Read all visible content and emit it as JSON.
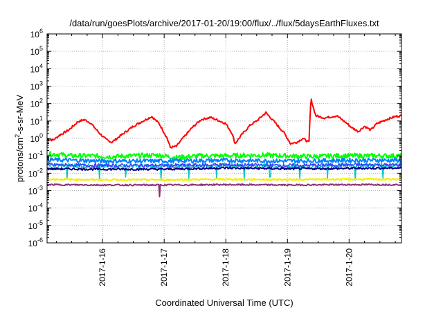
{
  "chart_data": {
    "type": "line",
    "title": "/data/run/goesPlots/archive/2017-01-20/19:00/flux/../flux/5daysEarthFluxes.txt",
    "xlabel": "Coordinated Universal Time (UTC)",
    "ylabel_parts": [
      "protons/cm",
      "2",
      "-s-sr-MeV"
    ],
    "yscale": "log",
    "ylim_exp": [
      -6,
      6
    ],
    "ytick_labels": [
      {
        "base": "10",
        "exp": "-6"
      },
      {
        "base": "10",
        "exp": "-5"
      },
      {
        "base": "10",
        "exp": "-4"
      },
      {
        "base": "10",
        "exp": "-3"
      },
      {
        "base": "10",
        "exp": "-2"
      },
      {
        "base": "10",
        "exp": "-1"
      },
      {
        "base": "10",
        "exp": "0"
      },
      {
        "base": "10",
        "exp": "1"
      },
      {
        "base": "10",
        "exp": "2"
      },
      {
        "base": "10",
        "exp": "3"
      },
      {
        "base": "10",
        "exp": "4"
      },
      {
        "base": "10",
        "exp": "5"
      },
      {
        "base": "10",
        "exp": "6"
      }
    ],
    "xlim_days": [
      15.1,
      20.85
    ],
    "xtick_labels": [
      {
        "day": 16,
        "label": "2017-1-16"
      },
      {
        "day": 17,
        "label": "2017-1-17"
      },
      {
        "day": 18,
        "label": "2017-1-18"
      },
      {
        "day": 19,
        "label": "2017-1-19"
      },
      {
        "day": 20,
        "label": "2017-1-20"
      }
    ],
    "grid": true,
    "series": [
      {
        "color": "#ff0000",
        "width": 2.0,
        "noise": 0.06,
        "spikes": [],
        "points": [
          [
            15.1,
            0.9
          ],
          [
            15.2,
            0.8
          ],
          [
            15.3,
            1.5
          ],
          [
            15.45,
            3
          ],
          [
            15.6,
            9
          ],
          [
            15.7,
            12
          ],
          [
            15.8,
            8
          ],
          [
            15.95,
            2
          ],
          [
            16.05,
            0.9
          ],
          [
            16.15,
            0.6
          ],
          [
            16.3,
            1.5
          ],
          [
            16.5,
            5
          ],
          [
            16.7,
            12
          ],
          [
            16.8,
            18
          ],
          [
            16.92,
            7
          ],
          [
            17.05,
            1
          ],
          [
            17.1,
            0.3
          ],
          [
            17.2,
            0.35
          ],
          [
            17.3,
            1
          ],
          [
            17.45,
            4
          ],
          [
            17.6,
            12
          ],
          [
            17.75,
            16
          ],
          [
            17.9,
            10
          ],
          [
            18.0,
            7
          ],
          [
            18.1,
            2
          ],
          [
            18.15,
            0.5
          ],
          [
            18.25,
            1.5
          ],
          [
            18.4,
            6
          ],
          [
            18.5,
            10
          ],
          [
            18.65,
            30
          ],
          [
            18.8,
            8
          ],
          [
            18.95,
            2
          ],
          [
            19.05,
            0.5
          ],
          [
            19.15,
            0.6
          ],
          [
            19.25,
            1
          ],
          [
            19.35,
            0.6
          ],
          [
            19.38,
            200
          ],
          [
            19.42,
            60
          ],
          [
            19.46,
            20
          ],
          [
            19.6,
            15
          ],
          [
            19.8,
            20
          ],
          [
            19.95,
            8
          ],
          [
            20.05,
            4
          ],
          [
            20.15,
            2.5
          ],
          [
            20.25,
            5
          ],
          [
            20.35,
            3
          ],
          [
            20.45,
            7
          ],
          [
            20.6,
            12
          ],
          [
            20.75,
            18
          ],
          [
            20.85,
            20
          ]
        ]
      },
      {
        "color": "#00ff00",
        "width": 2.0,
        "noise": 0.14,
        "spikes": [],
        "points": [
          [
            15.1,
            0.13
          ],
          [
            15.3,
            0.12
          ],
          [
            15.5,
            0.1
          ],
          [
            15.8,
            0.1
          ],
          [
            16.1,
            0.09
          ],
          [
            16.5,
            0.1
          ],
          [
            16.9,
            0.11
          ],
          [
            17.2,
            0.08
          ],
          [
            17.6,
            0.1
          ],
          [
            18.0,
            0.1
          ],
          [
            18.5,
            0.11
          ],
          [
            19.0,
            0.1
          ],
          [
            19.4,
            0.09
          ],
          [
            19.8,
            0.1
          ],
          [
            20.2,
            0.1
          ],
          [
            20.85,
            0.1
          ]
        ]
      },
      {
        "color": "#00c8c8",
        "width": 1.5,
        "noise": 0.13,
        "spikes": [
          [
            15.42,
            0.005
          ],
          [
            15.95,
            0.004
          ],
          [
            16.38,
            0.006
          ],
          [
            16.95,
            0.004
          ],
          [
            17.4,
            0.005
          ],
          [
            17.85,
            0.005
          ],
          [
            18.3,
            0.004
          ],
          [
            18.72,
            0.006
          ],
          [
            19.2,
            0.005
          ],
          [
            19.65,
            0.005
          ],
          [
            20.1,
            0.004
          ],
          [
            20.55,
            0.005
          ]
        ],
        "points": [
          [
            15.1,
            0.03
          ],
          [
            16.0,
            0.025
          ],
          [
            17.0,
            0.025
          ],
          [
            18.0,
            0.03
          ],
          [
            19.0,
            0.025
          ],
          [
            20.0,
            0.03
          ],
          [
            20.85,
            0.03
          ]
        ]
      },
      {
        "color": "#0080ff",
        "width": 2.0,
        "noise": 0.12,
        "spikes": [],
        "points": [
          [
            15.1,
            0.06
          ],
          [
            16.0,
            0.05
          ],
          [
            17.0,
            0.05
          ],
          [
            18.0,
            0.055
          ],
          [
            19.0,
            0.05
          ],
          [
            20.0,
            0.055
          ],
          [
            20.85,
            0.055
          ]
        ]
      },
      {
        "color": "#3c3cff",
        "width": 1.5,
        "noise": 0.1,
        "spikes": [],
        "points": [
          [
            15.1,
            0.03
          ],
          [
            16.0,
            0.028
          ],
          [
            17.0,
            0.028
          ],
          [
            18.0,
            0.03
          ],
          [
            19.0,
            0.028
          ],
          [
            20.0,
            0.03
          ],
          [
            20.85,
            0.03
          ]
        ]
      },
      {
        "color": "#000080",
        "width": 2.0,
        "noise": 0.06,
        "spikes": [],
        "points": [
          [
            15.1,
            0.018
          ],
          [
            16.0,
            0.017
          ],
          [
            17.0,
            0.017
          ],
          [
            18.0,
            0.02
          ],
          [
            19.0,
            0.018
          ],
          [
            20.0,
            0.019
          ],
          [
            20.85,
            0.02
          ]
        ]
      },
      {
        "color": "#f0f000",
        "width": 2.0,
        "noise": 0.05,
        "spikes": [],
        "points": [
          [
            15.1,
            0.0045
          ],
          [
            16.0,
            0.0042
          ],
          [
            17.0,
            0.0042
          ],
          [
            18.0,
            0.0045
          ],
          [
            19.0,
            0.0043
          ],
          [
            20.0,
            0.0045
          ],
          [
            20.85,
            0.0045
          ]
        ]
      },
      {
        "color": "#8c2d78",
        "width": 2.0,
        "noise": 0.04,
        "spikes": [
          [
            16.92,
            0.00045
          ]
        ],
        "points": [
          [
            15.1,
            0.0022
          ],
          [
            16.0,
            0.0021
          ],
          [
            17.0,
            0.0021
          ],
          [
            18.0,
            0.0022
          ],
          [
            19.0,
            0.0021
          ],
          [
            20.0,
            0.0022
          ],
          [
            20.85,
            0.0022
          ]
        ]
      }
    ]
  }
}
